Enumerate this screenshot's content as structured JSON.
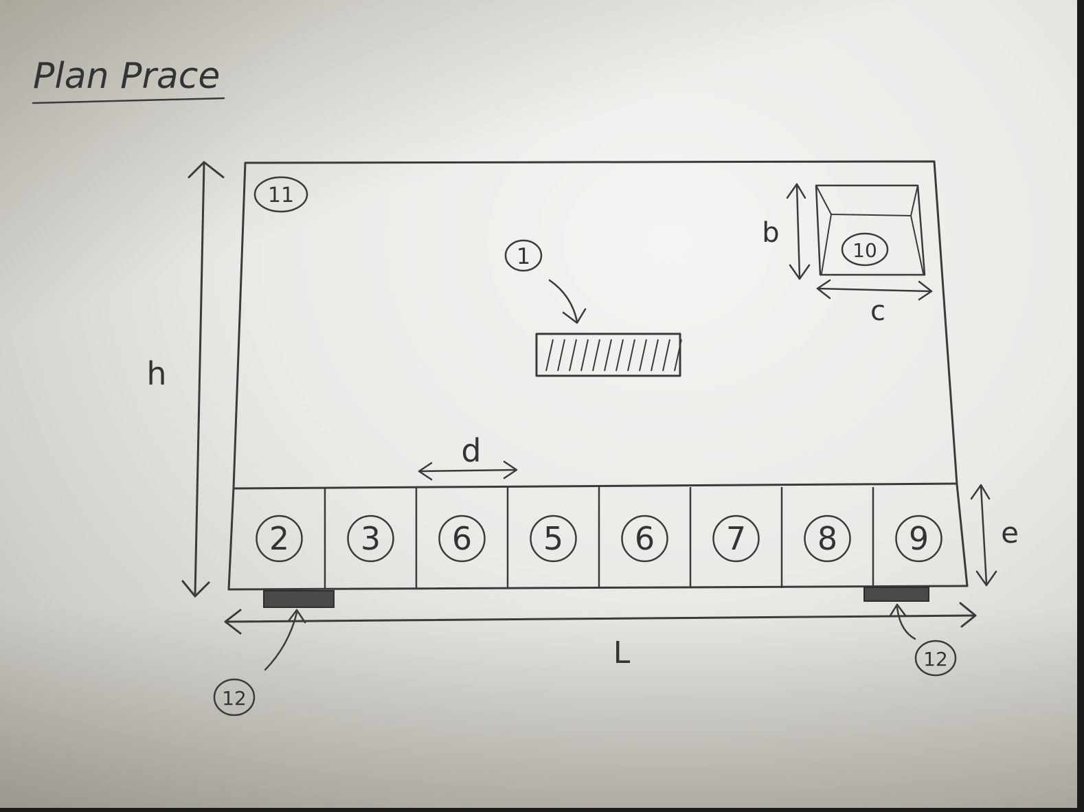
{
  "title": "Plan Prace",
  "dimension_labels": {
    "h": "h",
    "L": "L",
    "b": "b",
    "c": "c",
    "d": "d",
    "e": "e"
  },
  "markers": {
    "m1": "1",
    "m10": "10",
    "m11": "11",
    "m12_left": "12",
    "m12_right": "12"
  },
  "cells": [
    "2",
    "3",
    "6",
    "5",
    "6",
    "7",
    "8",
    "9"
  ],
  "colors": {
    "ink": "#3a3a3a",
    "paper": "#ececea"
  }
}
